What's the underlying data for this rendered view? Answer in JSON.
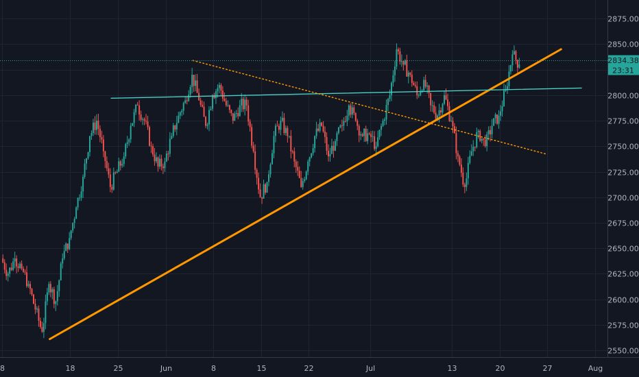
{
  "chart_data": {
    "type": "candlestick",
    "y_axis": {
      "range": [
        2545,
        2895
      ],
      "ticks": [
        2550,
        2575,
        2600,
        2625,
        2650,
        2675,
        2700,
        2725,
        2750,
        2775,
        2800,
        2825,
        2850,
        2875
      ],
      "tick_labels": [
        "2550.00",
        "2575.00",
        "2600.00",
        "2625.00",
        "2650.00",
        "2675.00",
        "2700.00",
        "2725.00",
        "2750.00",
        "2775.00",
        "2800.00",
        "2825.00",
        "2850.00",
        "2875.00"
      ],
      "position": "right"
    },
    "x_axis": {
      "range": [
        "2020-05-08",
        "2020-08-03"
      ],
      "ticks": [
        "2020-05-08",
        "2020-05-18",
        "2020-05-25",
        "2020-06-01",
        "2020-06-08",
        "2020-06-15",
        "2020-06-22",
        "2020-07-01",
        "2020-07-13",
        "2020-07-20",
        "2020-07-27",
        "2020-08-03"
      ],
      "tick_labels": [
        "8",
        "18",
        "25",
        "Jun",
        "8",
        "15",
        "22",
        "Jul",
        "13",
        "20",
        "27",
        "Aug"
      ]
    },
    "grid": true,
    "last_price": 2834.38,
    "last_price_label": "2834.38",
    "countdown_label": "23:31",
    "price_tag_color": "#26a69a",
    "up_color": "#26a69a",
    "down_color": "#ef5350",
    "daily_closes": [
      [
        "2020-05-08",
        2640
      ],
      [
        "2020-05-09",
        2625
      ],
      [
        "2020-05-10",
        2640
      ],
      [
        "2020-05-11",
        2630
      ],
      [
        "2020-05-12",
        2615
      ],
      [
        "2020-05-13",
        2590
      ],
      [
        "2020-05-14",
        2568
      ],
      [
        "2020-05-15",
        2615
      ],
      [
        "2020-05-16",
        2598
      ],
      [
        "2020-05-17",
        2640
      ],
      [
        "2020-05-18",
        2660
      ],
      [
        "2020-05-19",
        2690
      ],
      [
        "2020-05-20",
        2720
      ],
      [
        "2020-05-21",
        2760
      ],
      [
        "2020-05-22",
        2775
      ],
      [
        "2020-05-23",
        2745
      ],
      [
        "2020-05-24",
        2710
      ],
      [
        "2020-05-25",
        2725
      ],
      [
        "2020-05-26",
        2740
      ],
      [
        "2020-05-27",
        2770
      ],
      [
        "2020-05-28",
        2790
      ],
      [
        "2020-05-29",
        2775
      ],
      [
        "2020-05-30",
        2750
      ],
      [
        "2020-05-31",
        2730
      ],
      [
        "2020-06-01",
        2735
      ],
      [
        "2020-06-02",
        2760
      ],
      [
        "2020-06-03",
        2780
      ],
      [
        "2020-06-04",
        2795
      ],
      [
        "2020-06-05",
        2820
      ],
      [
        "2020-06-06",
        2795
      ],
      [
        "2020-06-07",
        2770
      ],
      [
        "2020-06-08",
        2800
      ],
      [
        "2020-06-09",
        2810
      ],
      [
        "2020-06-10",
        2790
      ],
      [
        "2020-06-11",
        2775
      ],
      [
        "2020-06-12",
        2790
      ],
      [
        "2020-06-13",
        2790
      ],
      [
        "2020-06-14",
        2745
      ],
      [
        "2020-06-15",
        2700
      ],
      [
        "2020-06-16",
        2715
      ],
      [
        "2020-06-17",
        2760
      ],
      [
        "2020-06-18",
        2775
      ],
      [
        "2020-06-19",
        2760
      ],
      [
        "2020-06-20",
        2735
      ],
      [
        "2020-06-21",
        2710
      ],
      [
        "2020-06-22",
        2735
      ],
      [
        "2020-06-23",
        2760
      ],
      [
        "2020-06-24",
        2770
      ],
      [
        "2020-06-25",
        2740
      ],
      [
        "2020-06-26",
        2755
      ],
      [
        "2020-06-27",
        2770
      ],
      [
        "2020-06-28",
        2790
      ],
      [
        "2020-06-29",
        2775
      ],
      [
        "2020-06-30",
        2760
      ],
      [
        "2020-07-01",
        2762
      ],
      [
        "2020-07-02",
        2750
      ],
      [
        "2020-07-03",
        2775
      ],
      [
        "2020-07-04",
        2800
      ],
      [
        "2020-07-05",
        2845
      ],
      [
        "2020-07-06",
        2830
      ],
      [
        "2020-07-07",
        2820
      ],
      [
        "2020-07-08",
        2800
      ],
      [
        "2020-07-09",
        2815
      ],
      [
        "2020-07-10",
        2790
      ],
      [
        "2020-07-11",
        2780
      ],
      [
        "2020-07-12",
        2800
      ],
      [
        "2020-07-13",
        2775
      ],
      [
        "2020-07-14",
        2740
      ],
      [
        "2020-07-15",
        2710
      ],
      [
        "2020-07-16",
        2745
      ],
      [
        "2020-07-17",
        2765
      ],
      [
        "2020-07-18",
        2750
      ],
      [
        "2020-07-19",
        2770
      ],
      [
        "2020-07-20",
        2780
      ],
      [
        "2020-07-21",
        2805
      ],
      [
        "2020-07-22",
        2840
      ],
      [
        "2020-07-23",
        2830
      ]
    ],
    "trendlines": [
      {
        "style": "solid",
        "color": "#ff9800",
        "width": 3,
        "from": [
          "2020-05-15",
          2561
        ],
        "to": [
          "2020-07-29",
          2845
        ]
      },
      {
        "style": "solid",
        "color": "#4dd0c5",
        "width": 1.3,
        "from": [
          "2020-05-24",
          2797
        ],
        "to": [
          "2020-08-01",
          2807
        ]
      },
      {
        "style": "dotted",
        "color": "#ff9800",
        "width": 1.5,
        "from": [
          "2020-06-05",
          2834
        ],
        "to": [
          "2020-07-27",
          2742
        ]
      }
    ]
  }
}
